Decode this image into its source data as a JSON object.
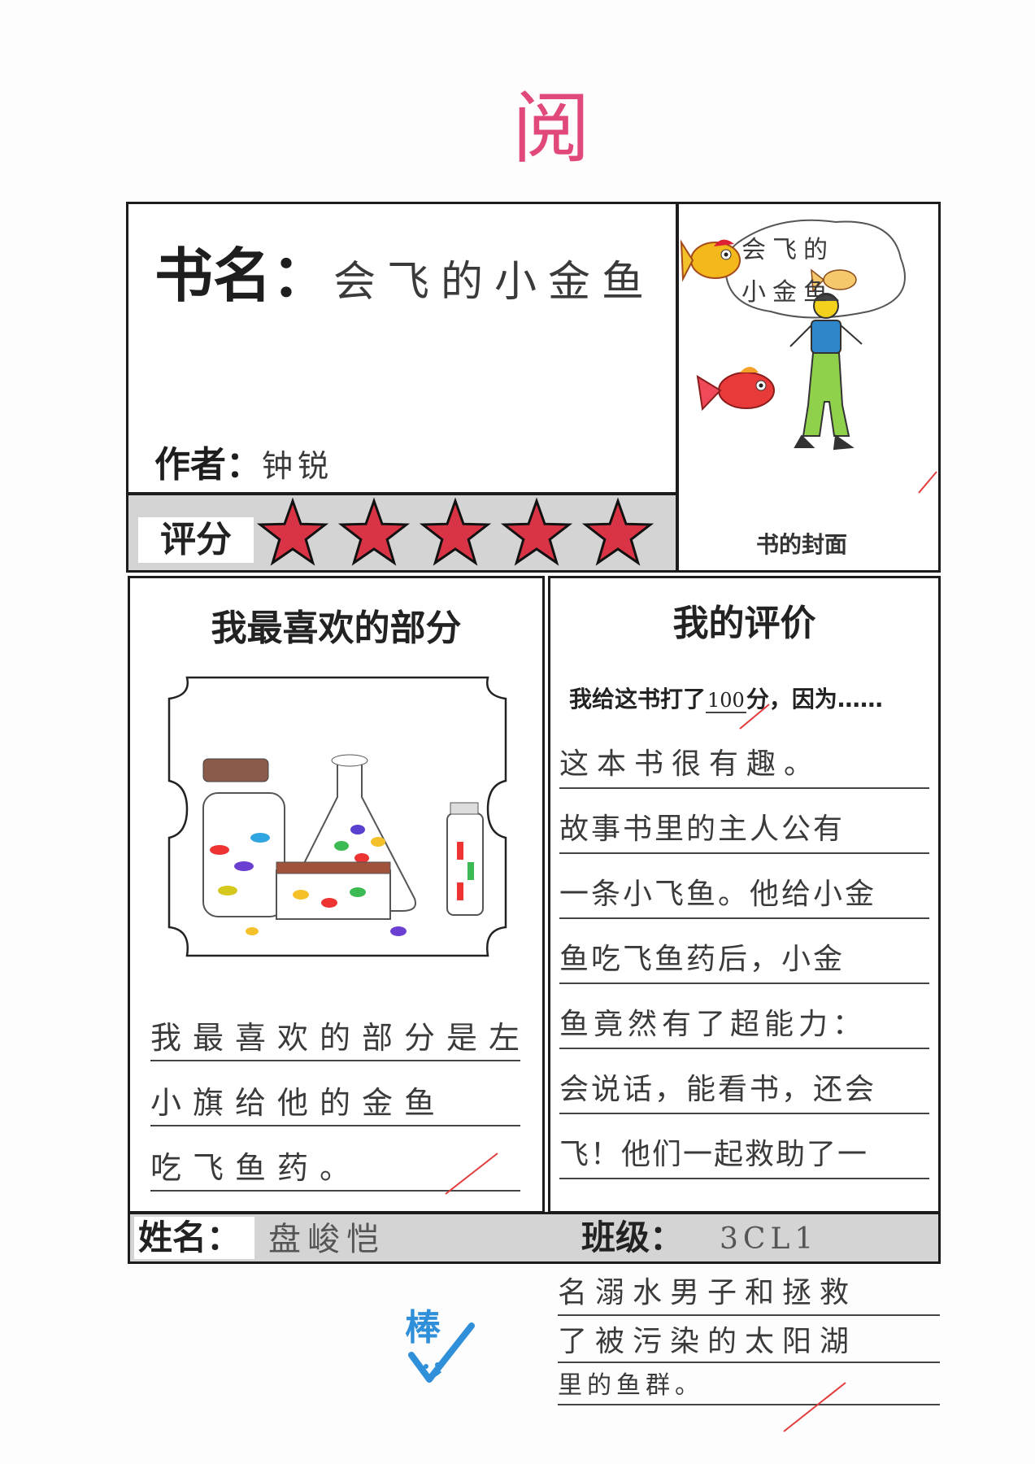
{
  "teacher_mark": "阅",
  "book": {
    "title_label": "书名：",
    "title": "会飞的小金鱼",
    "author_label": "作者：",
    "author": "钟锐"
  },
  "rating": {
    "label": "评分",
    "stars": 5,
    "max_stars": 5
  },
  "cover": {
    "label": "书的封面",
    "bubble_text_1": "会飞的",
    "bubble_text_2": "小金鱼"
  },
  "favorite": {
    "heading": "我最喜欢的部分",
    "lines": [
      "我最喜欢的部分是左",
      "小旗给他的金鱼",
      "吃飞鱼药。"
    ]
  },
  "review": {
    "heading": "我的评价",
    "prompt_before": "我给这书打了",
    "score": "100",
    "prompt_after": "分，因为……",
    "lines": [
      "这本书很有趣。",
      "故事书里的主人公有",
      "一条小飞鱼。他给小金",
      "鱼吃飞鱼药后，小金",
      "鱼竟然有了超能力：",
      "会说话，能看书，还会",
      "飞！他们一起救助了一"
    ],
    "overflow_lines": [
      "名溺水男子和拯救",
      "了被污染的太阳湖",
      "里的鱼群。"
    ]
  },
  "student": {
    "name_label": "姓名：",
    "name": "盘峻恺",
    "class_label": "班级：",
    "class": "3CL1"
  },
  "stamp": {
    "text": "棒"
  },
  "colors": {
    "teacher_red": "#e0497a",
    "star_red": "#d93445",
    "stamp_blue": "#2f8fd8",
    "grade_mark": "#e23b3b"
  }
}
